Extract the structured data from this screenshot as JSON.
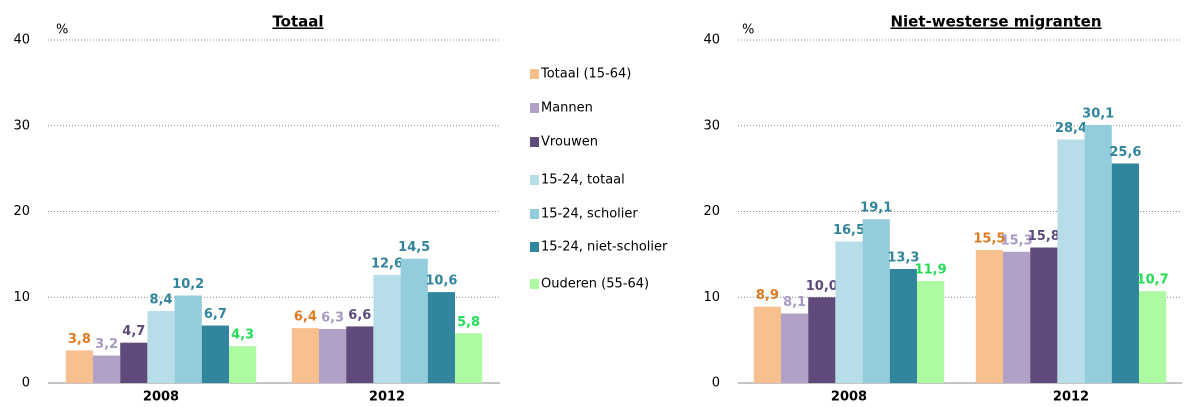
{
  "chart_data": [
    {
      "type": "bar",
      "title": "Totaal",
      "y_label": "%",
      "categories": [
        "2008",
        "2012"
      ],
      "ylim": [
        0,
        40
      ],
      "yticks": [
        0,
        10,
        20,
        30,
        40
      ],
      "grid": true,
      "series": [
        {
          "name": "Totaal (15-64)",
          "color": "#f9c08f",
          "label_color": "#e07a1f",
          "values": [
            3.8,
            6.4
          ],
          "value_labels": [
            "3,8",
            "6,4"
          ]
        },
        {
          "name": "Mannen",
          "color": "#b1a0c7",
          "label_color": "#a898c4",
          "values": [
            3.2,
            6.3
          ],
          "value_labels": [
            "3,2",
            "6,3"
          ]
        },
        {
          "name": "Vrouwen",
          "color": "#604a7b",
          "label_color": "#5e4a7a",
          "values": [
            4.7,
            6.6
          ],
          "value_labels": [
            "4,7",
            "6,6"
          ]
        },
        {
          "name": "15-24, totaal",
          "color": "#b7dee8",
          "label_color": "#31849b",
          "values": [
            8.4,
            12.6
          ],
          "value_labels": [
            "8,4",
            "12,6"
          ]
        },
        {
          "name": "15-24, scholier",
          "color": "#93cddd",
          "label_color": "#31849b",
          "values": [
            10.2,
            14.5
          ],
          "value_labels": [
            "10,2",
            "14,5"
          ]
        },
        {
          "name": "15-24, niet-scholier",
          "color": "#31859c",
          "label_color": "#31849b",
          "values": [
            6.7,
            10.6
          ],
          "value_labels": [
            "6,7",
            "10,6"
          ]
        },
        {
          "name": "Ouderen (55-64)",
          "color": "#aefaa2",
          "label_color": "#22dd55",
          "values": [
            4.3,
            5.8
          ],
          "value_labels": [
            "4,3",
            "5,8"
          ]
        }
      ]
    },
    {
      "type": "bar",
      "title": "Niet-westerse migranten",
      "y_label": "%",
      "categories": [
        "2008",
        "2012"
      ],
      "ylim": [
        0,
        40
      ],
      "yticks": [
        0,
        10,
        20,
        30,
        40
      ],
      "grid": true,
      "series": [
        {
          "values": [
            8.9,
            15.5
          ],
          "value_labels": [
            "8,9",
            "15,5"
          ]
        },
        {
          "values": [
            8.1,
            15.3
          ],
          "value_labels": [
            "8,1",
            "15,3"
          ]
        },
        {
          "values": [
            10.0,
            15.8
          ],
          "value_labels": [
            "10,0",
            "15,8"
          ]
        },
        {
          "values": [
            16.5,
            28.4
          ],
          "value_labels": [
            "16,5",
            "28,4"
          ]
        },
        {
          "values": [
            19.1,
            30.1
          ],
          "value_labels": [
            "19,1",
            "30,1"
          ]
        },
        {
          "values": [
            13.3,
            25.6
          ],
          "value_labels": [
            "13,3",
            "25,6"
          ]
        },
        {
          "values": [
            11.9,
            10.7
          ],
          "value_labels": [
            "11,9",
            "10,7"
          ]
        }
      ]
    }
  ]
}
